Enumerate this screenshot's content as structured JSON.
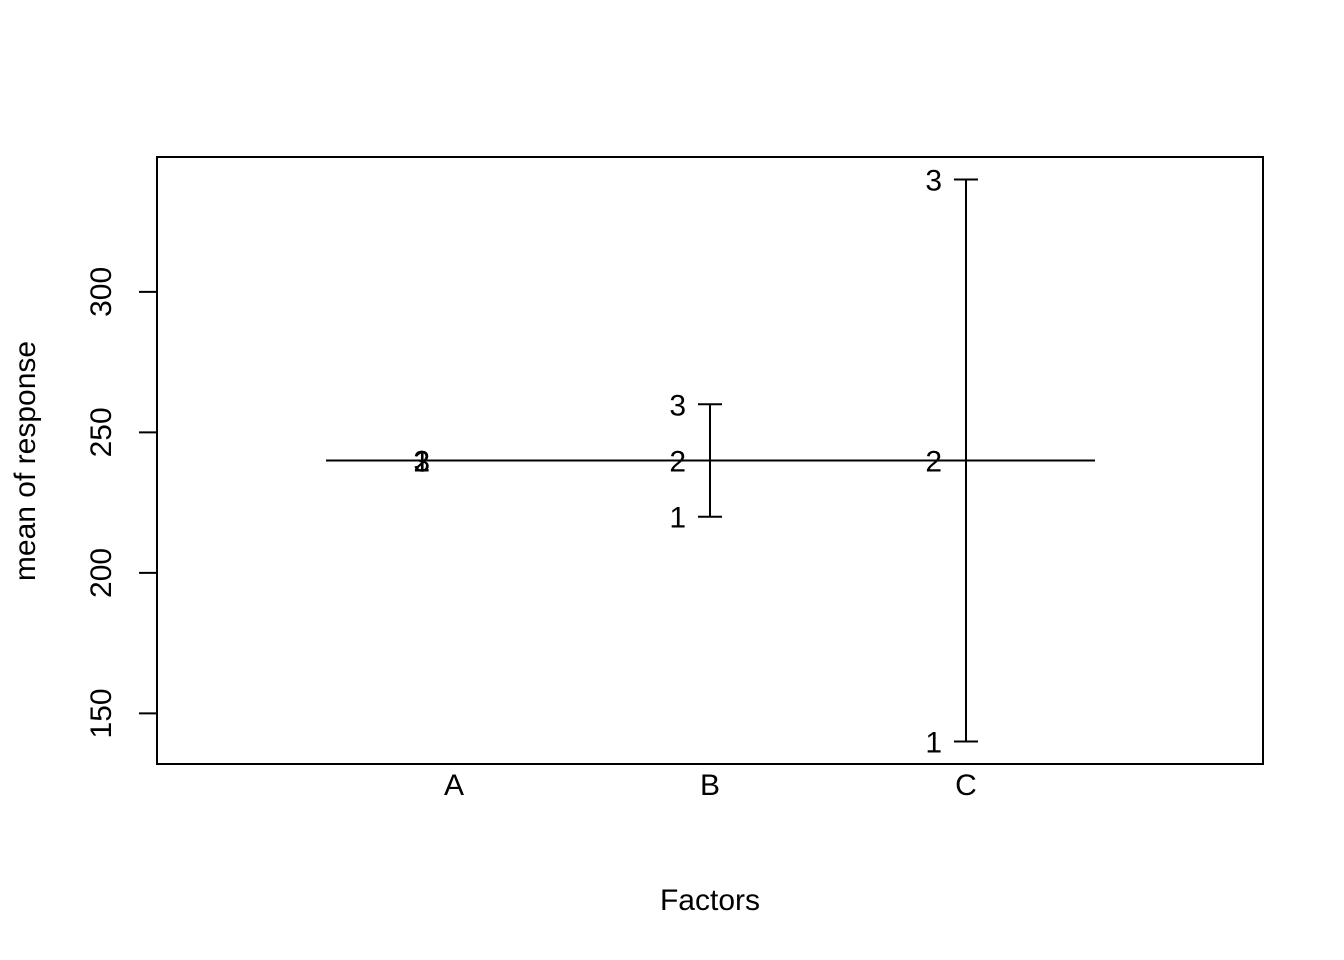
{
  "chart_data": {
    "type": "line",
    "title": "",
    "xlabel": "Factors",
    "ylabel": "mean of response",
    "ylim": [
      132,
      348
    ],
    "yticks": [
      150,
      200,
      250,
      300
    ],
    "grid": false,
    "grand_mean": 240,
    "factors": [
      {
        "name": "A",
        "levels": [
          {
            "label": "1",
            "mean": 240
          },
          {
            "label": "2",
            "mean": 240
          },
          {
            "label": "3",
            "mean": 240
          }
        ]
      },
      {
        "name": "B",
        "levels": [
          {
            "label": "1",
            "mean": 220
          },
          {
            "label": "2",
            "mean": 240
          },
          {
            "label": "3",
            "mean": 260
          }
        ]
      },
      {
        "name": "C",
        "levels": [
          {
            "label": "1",
            "mean": 140
          },
          {
            "label": "2",
            "mean": 240
          },
          {
            "label": "3",
            "mean": 340
          }
        ]
      }
    ]
  }
}
